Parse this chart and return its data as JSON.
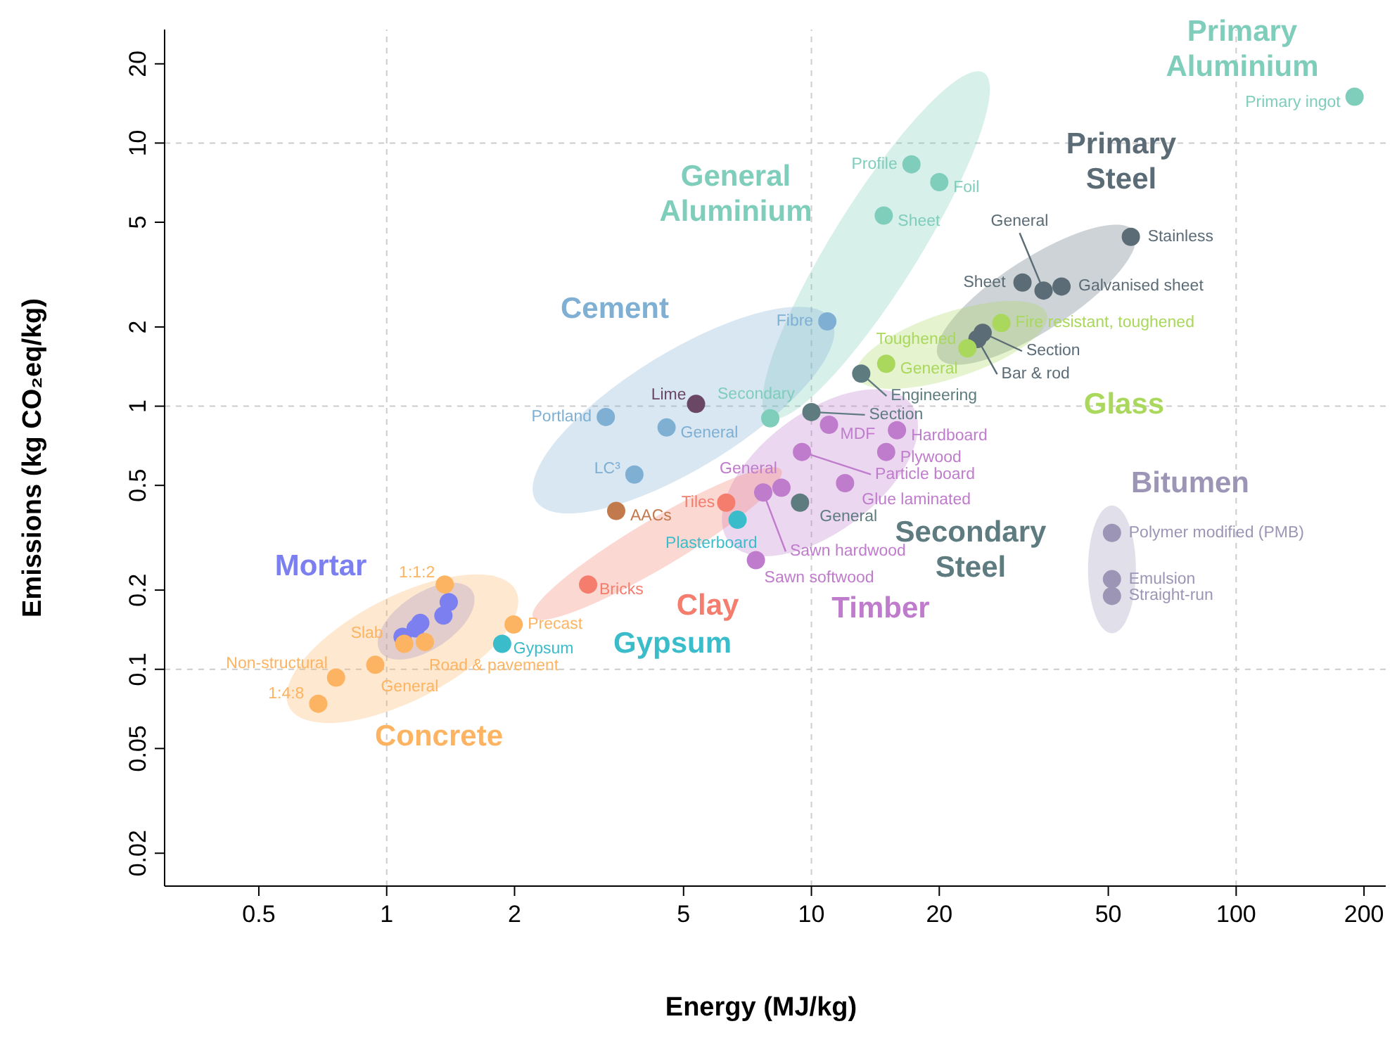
{
  "chart_data": {
    "type": "scatter",
    "xlabel": "Energy (MJ/kg)",
    "ylabel": "Emissions (kg CO₂eq/kg)",
    "log": "xy",
    "grid": true,
    "marker": "circle",
    "xlim": [
      0.3,
      225
    ],
    "ylim": [
      0.015,
      27
    ],
    "xticks": [
      0.5,
      1,
      2,
      5,
      10,
      20,
      50,
      100,
      200
    ],
    "yticks": [
      0.02,
      0.05,
      0.1,
      0.2,
      0.5,
      1,
      2,
      5,
      10,
      20
    ],
    "series": [
      {
        "name": "Primary Aluminium",
        "color": "#7fcdbb",
        "x": [
          190
        ],
        "values": [
          15
        ],
        "value_labels": [
          "Primary ingot"
        ]
      },
      {
        "name": "General Aluminium",
        "color": "#7fcdbb",
        "x": [
          17.2,
          20,
          14.8,
          8
        ],
        "values": [
          8.3,
          7.1,
          5.3,
          0.9
        ],
        "value_labels": [
          "Profile",
          "Foil",
          "Sheet",
          "Secondary"
        ]
      },
      {
        "name": "Primary Steel",
        "color": "#5b6c76",
        "x": [
          56.5,
          35.2,
          31.4,
          38.8,
          25.3,
          24.6
        ],
        "values": [
          4.4,
          2.75,
          2.95,
          2.85,
          1.9,
          1.8
        ],
        "value_labels": [
          "Stainless",
          "General",
          "Sheet",
          "Galvanised sheet",
          "Section",
          "Bar & rod"
        ]
      },
      {
        "name": "Cement",
        "color": "#7fb0d4",
        "x": [
          10.9,
          3.28,
          4.56,
          3.83
        ],
        "values": [
          2.1,
          0.91,
          0.83,
          0.55
        ],
        "value_labels": [
          "Fibre",
          "Portland",
          "General",
          "LC³"
        ]
      },
      {
        "name": "Glass",
        "color": "#a9d85c",
        "x": [
          23.3,
          15,
          28
        ],
        "values": [
          1.66,
          1.45,
          2.07
        ],
        "value_labels": [
          "Toughened",
          "General",
          "Fire resistant, toughened"
        ]
      },
      {
        "name": "Bitumen",
        "color": "#9d95b5",
        "x": [
          51,
          51,
          51
        ],
        "values": [
          0.33,
          0.22,
          0.19
        ],
        "value_labels": [
          "Polymer modified (PMB)",
          "Emulsion",
          "Straight-run"
        ]
      },
      {
        "name": "Secondary Steel",
        "color": "#5e7c80",
        "x": [
          13.1,
          10,
          9.4
        ],
        "values": [
          1.33,
          0.95,
          0.43
        ],
        "value_labels": [
          "Engineering",
          "Section",
          "General"
        ]
      },
      {
        "name": "Timber",
        "color": "#c07ccc",
        "x": [
          11,
          15.9,
          15,
          9.5,
          12,
          8.5,
          7.7,
          7.4
        ],
        "values": [
          0.85,
          0.81,
          0.67,
          0.67,
          0.51,
          0.49,
          0.47,
          0.26
        ],
        "value_labels": [
          "MDF",
          "Hardboard",
          "Plywood",
          "Particle board",
          "Glue laminated",
          "General",
          "Sawn hardwood",
          "Sawn softwood"
        ]
      },
      {
        "name": "Clay",
        "color": "#f47d6e",
        "x": [
          6.3,
          2.98
        ],
        "values": [
          0.43,
          0.21
        ],
        "value_labels": [
          "Tiles",
          "Bricks"
        ]
      },
      {
        "name": "Gypsum",
        "color": "#3bbccb",
        "x": [
          6.7,
          1.87
        ],
        "values": [
          0.37,
          0.125
        ],
        "value_labels": [
          "Plasterboard",
          "Gypsum"
        ]
      },
      {
        "name": "Mortar",
        "color": "#7b7ff0",
        "x": [
          1.4,
          1.36,
          1.2,
          1.17,
          1.09
        ],
        "values": [
          0.18,
          0.16,
          0.15,
          0.143,
          0.133
        ],
        "value_labels": [
          null,
          null,
          null,
          null,
          null
        ]
      },
      {
        "name": "Concrete",
        "color": "#fdb462",
        "x": [
          1.37,
          1.1,
          1.23,
          1.99,
          0.94,
          0.76,
          0.69
        ],
        "values": [
          0.21,
          0.125,
          0.127,
          0.148,
          0.104,
          0.093,
          0.074
        ],
        "value_labels": [
          "1:1:2",
          "Slab",
          "Road & pavement",
          "Precast",
          "General",
          "Non-structural",
          "1:4:8"
        ]
      },
      {
        "color": "#6b4766",
        "x": [
          5.35
        ],
        "values": [
          1.02
        ],
        "value_labels": [
          "Lime"
        ]
      },
      {
        "color": "#c27a4c",
        "x": [
          3.47
        ],
        "values": [
          0.4
        ],
        "value_labels": [
          "AACs"
        ]
      }
    ]
  }
}
